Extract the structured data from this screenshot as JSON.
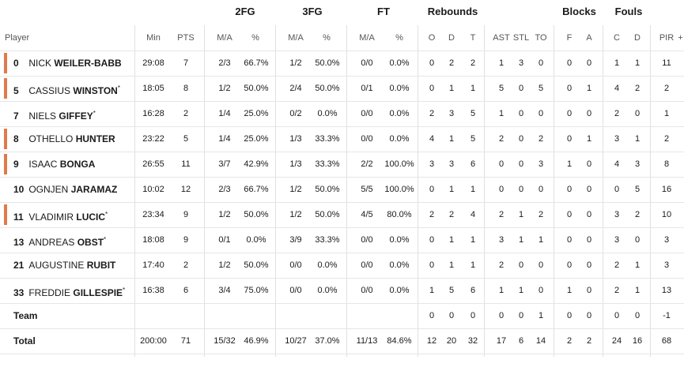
{
  "groups": {
    "fg2": "2FG",
    "fg3": "3FG",
    "ft": "FT",
    "rebounds": "Rebounds",
    "blocks": "Blocks",
    "fouls": "Fouls"
  },
  "columns": {
    "player": "Player",
    "min": "Min",
    "pts": "PTS",
    "fg2_ma": "M/A",
    "fg2_pct": "%",
    "fg3_ma": "M/A",
    "fg3_pct": "%",
    "ft_ma": "M/A",
    "ft_pct": "%",
    "reb_o": "O",
    "reb_d": "D",
    "reb_t": "T",
    "ast": "AST",
    "stl": "STL",
    "to": "TO",
    "blk_f": "F",
    "blk_a": "A",
    "foul_c": "C",
    "foul_d": "D",
    "pir": "PIR",
    "more": "+"
  },
  "players": [
    {
      "num": "0",
      "first": "NICK",
      "last": "WEILER-BABB",
      "star": "",
      "starter": true,
      "min": "29:08",
      "pts": "7",
      "fg2_ma": "2/3",
      "fg2_pct": "66.7%",
      "fg3_ma": "1/2",
      "fg3_pct": "50.0%",
      "ft_ma": "0/0",
      "ft_pct": "0.0%",
      "o": "0",
      "d": "2",
      "t": "2",
      "ast": "1",
      "stl": "3",
      "to": "0",
      "bf": "0",
      "ba": "0",
      "fc": "1",
      "fd": "1",
      "pir": "11"
    },
    {
      "num": "5",
      "first": "CASSIUS",
      "last": "WINSTON",
      "star": "*",
      "starter": true,
      "min": "18:05",
      "pts": "8",
      "fg2_ma": "1/2",
      "fg2_pct": "50.0%",
      "fg3_ma": "2/4",
      "fg3_pct": "50.0%",
      "ft_ma": "0/1",
      "ft_pct": "0.0%",
      "o": "0",
      "d": "1",
      "t": "1",
      "ast": "5",
      "stl": "0",
      "to": "5",
      "bf": "0",
      "ba": "1",
      "fc": "4",
      "fd": "2",
      "pir": "2"
    },
    {
      "num": "7",
      "first": "NIELS",
      "last": "GIFFEY",
      "star": "*",
      "starter": false,
      "min": "16:28",
      "pts": "2",
      "fg2_ma": "1/4",
      "fg2_pct": "25.0%",
      "fg3_ma": "0/2",
      "fg3_pct": "0.0%",
      "ft_ma": "0/0",
      "ft_pct": "0.0%",
      "o": "2",
      "d": "3",
      "t": "5",
      "ast": "1",
      "stl": "0",
      "to": "0",
      "bf": "0",
      "ba": "0",
      "fc": "2",
      "fd": "0",
      "pir": "1"
    },
    {
      "num": "8",
      "first": "OTHELLO",
      "last": "HUNTER",
      "star": "",
      "starter": true,
      "min": "23:22",
      "pts": "5",
      "fg2_ma": "1/4",
      "fg2_pct": "25.0%",
      "fg3_ma": "1/3",
      "fg3_pct": "33.3%",
      "ft_ma": "0/0",
      "ft_pct": "0.0%",
      "o": "4",
      "d": "1",
      "t": "5",
      "ast": "2",
      "stl": "0",
      "to": "2",
      "bf": "0",
      "ba": "1",
      "fc": "3",
      "fd": "1",
      "pir": "2"
    },
    {
      "num": "9",
      "first": "ISAAC",
      "last": "BONGA",
      "star": "",
      "starter": true,
      "min": "26:55",
      "pts": "11",
      "fg2_ma": "3/7",
      "fg2_pct": "42.9%",
      "fg3_ma": "1/3",
      "fg3_pct": "33.3%",
      "ft_ma": "2/2",
      "ft_pct": "100.0%",
      "o": "3",
      "d": "3",
      "t": "6",
      "ast": "0",
      "stl": "0",
      "to": "3",
      "bf": "1",
      "ba": "0",
      "fc": "4",
      "fd": "3",
      "pir": "8"
    },
    {
      "num": "10",
      "first": "OGNJEN",
      "last": "JARAMAZ",
      "star": "",
      "starter": false,
      "min": "10:02",
      "pts": "12",
      "fg2_ma": "2/3",
      "fg2_pct": "66.7%",
      "fg3_ma": "1/2",
      "fg3_pct": "50.0%",
      "ft_ma": "5/5",
      "ft_pct": "100.0%",
      "o": "0",
      "d": "1",
      "t": "1",
      "ast": "0",
      "stl": "0",
      "to": "0",
      "bf": "0",
      "ba": "0",
      "fc": "0",
      "fd": "5",
      "pir": "16"
    },
    {
      "num": "11",
      "first": "VLADIMIR",
      "last": "LUCIC",
      "star": "*",
      "starter": true,
      "min": "23:34",
      "pts": "9",
      "fg2_ma": "1/2",
      "fg2_pct": "50.0%",
      "fg3_ma": "1/2",
      "fg3_pct": "50.0%",
      "ft_ma": "4/5",
      "ft_pct": "80.0%",
      "o": "2",
      "d": "2",
      "t": "4",
      "ast": "2",
      "stl": "1",
      "to": "2",
      "bf": "0",
      "ba": "0",
      "fc": "3",
      "fd": "2",
      "pir": "10"
    },
    {
      "num": "13",
      "first": "ANDREAS",
      "last": "OBST",
      "star": "*",
      "starter": false,
      "min": "18:08",
      "pts": "9",
      "fg2_ma": "0/1",
      "fg2_pct": "0.0%",
      "fg3_ma": "3/9",
      "fg3_pct": "33.3%",
      "ft_ma": "0/0",
      "ft_pct": "0.0%",
      "o": "0",
      "d": "1",
      "t": "1",
      "ast": "3",
      "stl": "1",
      "to": "1",
      "bf": "0",
      "ba": "0",
      "fc": "3",
      "fd": "0",
      "pir": "3"
    },
    {
      "num": "21",
      "first": "AUGUSTINE",
      "last": "RUBIT",
      "star": "",
      "starter": false,
      "min": "17:40",
      "pts": "2",
      "fg2_ma": "1/2",
      "fg2_pct": "50.0%",
      "fg3_ma": "0/0",
      "fg3_pct": "0.0%",
      "ft_ma": "0/0",
      "ft_pct": "0.0%",
      "o": "0",
      "d": "1",
      "t": "1",
      "ast": "2",
      "stl": "0",
      "to": "0",
      "bf": "0",
      "ba": "0",
      "fc": "2",
      "fd": "1",
      "pir": "3"
    },
    {
      "num": "33",
      "first": "FREDDIE",
      "last": "GILLESPIE",
      "star": "*",
      "starter": false,
      "min": "16:38",
      "pts": "6",
      "fg2_ma": "3/4",
      "fg2_pct": "75.0%",
      "fg3_ma": "0/0",
      "fg3_pct": "0.0%",
      "ft_ma": "0/0",
      "ft_pct": "0.0%",
      "o": "1",
      "d": "5",
      "t": "6",
      "ast": "1",
      "stl": "1",
      "to": "0",
      "bf": "1",
      "ba": "0",
      "fc": "2",
      "fd": "1",
      "pir": "13"
    }
  ],
  "team": {
    "label": "Team",
    "min": "",
    "pts": "",
    "fg2_ma": "",
    "fg2_pct": "",
    "fg3_ma": "",
    "fg3_pct": "",
    "ft_ma": "",
    "ft_pct": "",
    "o": "0",
    "d": "0",
    "t": "0",
    "ast": "0",
    "stl": "0",
    "to": "1",
    "bf": "0",
    "ba": "0",
    "fc": "0",
    "fd": "0",
    "pir": "-1"
  },
  "total": {
    "label": "Total",
    "min": "200:00",
    "pts": "71",
    "fg2_ma": "15/32",
    "fg2_pct": "46.9%",
    "fg3_ma": "10/27",
    "fg3_pct": "37.0%",
    "ft_ma": "11/13",
    "ft_pct": "84.6%",
    "o": "12",
    "d": "20",
    "t": "32",
    "ast": "17",
    "stl": "6",
    "to": "14",
    "bf": "2",
    "ba": "2",
    "fc": "24",
    "fd": "16",
    "pir": "68"
  },
  "colors": {
    "starter_accent": "#e07a4a",
    "divider": "#e6e6e6"
  }
}
